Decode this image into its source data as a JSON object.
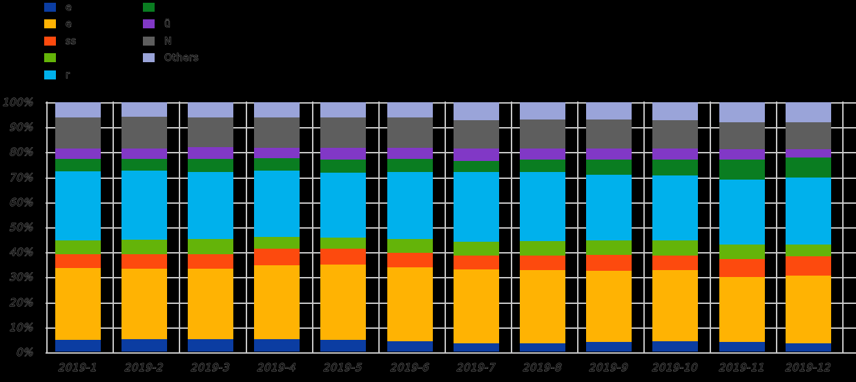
{
  "background_color": "#000000",
  "grid_color": "#c9c9c9",
  "tick_text_color": "#000000",
  "tick_text_outline_color": "#828282",
  "legend": {
    "position": "top-left",
    "column1_series": [
      0,
      1,
      2,
      3,
      4
    ],
    "column2_series": [
      5,
      6,
      7,
      8
    ]
  },
  "chart_data": {
    "type": "bar",
    "stacked": true,
    "percent_stacked": true,
    "title": "",
    "xlabel": "",
    "ylabel": "",
    "ylim": [
      0,
      100
    ],
    "grid": true,
    "legend_position": "top-left",
    "x_tick_style": "slanted",
    "stack_order": "bottom-to-top",
    "categories": [
      "2019-1",
      "2019-2",
      "2019-3",
      "2019-4",
      "2019-5",
      "2019-6",
      "2019-7",
      "2019-8",
      "2019-9",
      "2019-10",
      "2019-11",
      "2019-12"
    ],
    "y_ticks": [
      "100%",
      "90%",
      "80%",
      "70%",
      "60%",
      "50%",
      "40%",
      "30%",
      "20%",
      "10%",
      "0%"
    ],
    "series": [
      {
        "name": "series-1-navy",
        "label": "e",
        "color": "#0b3da2",
        "values": [
          4.6,
          4.9,
          4.8,
          4.9,
          4.6,
          4.0,
          3.2,
          3.2,
          3.9,
          4.0,
          3.7,
          3.1
        ]
      },
      {
        "name": "series-2-amber",
        "label": "e",
        "color": "#ffb303",
        "values": [
          28.8,
          28.2,
          28.4,
          29.8,
          30.3,
          29.8,
          29.8,
          29.4,
          28.6,
          28.7,
          26.3,
          27.3
        ]
      },
      {
        "name": "series-3-orange-red",
        "label": "ss",
        "color": "#fd4a0e",
        "values": [
          5.7,
          6.0,
          5.7,
          6.5,
          6.3,
          5.7,
          5.4,
          6.0,
          6.2,
          5.8,
          7.2,
          7.7
        ]
      },
      {
        "name": "series-4-yellow-green",
        "label": "",
        "color": "#64b409",
        "values": [
          5.4,
          5.7,
          6.2,
          4.9,
          4.6,
          5.6,
          5.6,
          5.6,
          5.8,
          6.0,
          5.7,
          4.9
        ]
      },
      {
        "name": "series-5-cyan",
        "label": "r",
        "color": "#00b1ec",
        "values": [
          27.9,
          27.9,
          26.9,
          26.4,
          25.9,
          26.9,
          28.0,
          27.9,
          26.4,
          26.2,
          26.2,
          26.8
        ]
      },
      {
        "name": "series-6-dark-green",
        "label": "",
        "color": "#0a7d21",
        "values": [
          4.9,
          4.6,
          5.3,
          5.0,
          5.3,
          5.4,
          4.6,
          5.0,
          6.2,
          6.4,
          8.1,
          8.0
        ]
      },
      {
        "name": "series-7-purple",
        "label": "ü",
        "color": "#8138c6",
        "values": [
          4.2,
          4.1,
          4.8,
          4.3,
          4.9,
          4.4,
          4.9,
          4.3,
          4.3,
          4.3,
          4.0,
          3.4
        ]
      },
      {
        "name": "series-8-gray",
        "label": "N",
        "color": "#5e5e5e",
        "values": [
          12.5,
          12.8,
          12.0,
          12.2,
          12.2,
          12.2,
          11.5,
          11.8,
          11.8,
          11.5,
          10.9,
          10.9
        ]
      },
      {
        "name": "series-9-periwinkle",
        "label": "Others",
        "color": "#9aa4d9",
        "values": [
          6.0,
          5.8,
          5.9,
          6.0,
          5.9,
          6.0,
          7.0,
          6.8,
          6.8,
          7.1,
          7.9,
          7.9
        ]
      }
    ]
  }
}
